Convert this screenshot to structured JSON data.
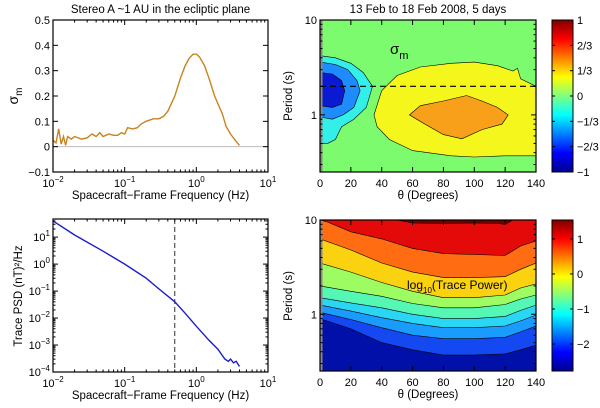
{
  "chart_data": [
    {
      "type": "line",
      "title": "Stereo A ~1 AU in the ecliptic plane",
      "xlabel": "Spacecraft−Frame Frequency (Hz)",
      "ylabel": "σ",
      "ylabel_sub": "m",
      "xscale": "log",
      "xlim": [
        0.01,
        10
      ],
      "ylim": [
        -0.1,
        0.5
      ],
      "xticks": [
        {
          "base": "10",
          "exp": "−2",
          "v": 0.01
        },
        {
          "base": "10",
          "exp": "−1",
          "v": 0.1
        },
        {
          "base": "10",
          "exp": "0",
          "v": 1
        },
        {
          "base": "10",
          "exp": "1",
          "v": 10
        }
      ],
      "yticks": [
        {
          "label": "0.5",
          "v": 0.5
        },
        {
          "label": "0.4",
          "v": 0.4
        },
        {
          "label": "0.3",
          "v": 0.3
        },
        {
          "label": "0.2",
          "v": 0.2
        },
        {
          "label": "0.1",
          "v": 0.1
        },
        {
          "label": "0",
          "v": 0
        },
        {
          "label": "−0.1",
          "v": -0.1
        }
      ],
      "zero_line": 0,
      "line_color": "#c8831e",
      "series": [
        {
          "x": [
            0.01,
            0.011,
            0.012,
            0.013,
            0.014,
            0.015,
            0.016,
            0.018,
            0.02,
            0.025,
            0.03,
            0.035,
            0.04,
            0.045,
            0.05,
            0.06,
            0.07,
            0.08,
            0.09,
            0.1,
            0.11,
            0.13,
            0.15,
            0.17,
            0.2,
            0.25,
            0.3,
            0.35,
            0.4,
            0.5,
            0.6,
            0.7,
            0.8,
            0.9,
            1.0,
            1.1,
            1.3,
            1.5,
            1.8,
            2.0,
            2.3,
            2.6,
            3.0,
            3.5,
            4.0
          ],
          "y": [
            0.025,
            0.015,
            0.07,
            0.01,
            0.04,
            0.005,
            0.04,
            0.03,
            0.04,
            0.03,
            0.035,
            0.05,
            0.04,
            0.055,
            0.04,
            0.05,
            0.045,
            0.045,
            0.055,
            0.05,
            0.075,
            0.07,
            0.075,
            0.09,
            0.1,
            0.11,
            0.11,
            0.12,
            0.14,
            0.2,
            0.27,
            0.32,
            0.35,
            0.365,
            0.365,
            0.355,
            0.32,
            0.27,
            0.2,
            0.17,
            0.13,
            0.08,
            0.05,
            0.025,
            0.005
          ]
        }
      ]
    },
    {
      "type": "line",
      "title": "",
      "xlabel": "Spacecraft−Frame Frequency (Hz)",
      "ylabel": "Trace PSD (nT)²/Hz",
      "xscale": "log",
      "yscale": "log",
      "xlim": [
        0.01,
        10
      ],
      "ylim": [
        0.0001,
        47
      ],
      "xticks": [
        {
          "base": "10",
          "exp": "−2",
          "v": 0.01
        },
        {
          "base": "10",
          "exp": "−1",
          "v": 0.1
        },
        {
          "base": "10",
          "exp": "0",
          "v": 1
        },
        {
          "base": "10",
          "exp": "1",
          "v": 10
        }
      ],
      "yticks": [
        {
          "base": "10",
          "exp": "1",
          "v": 10
        },
        {
          "base": "10",
          "exp": "0",
          "v": 1
        },
        {
          "base": "10",
          "exp": "−1",
          "v": 0.1
        },
        {
          "base": "10",
          "exp": "−2",
          "v": 0.01
        },
        {
          "base": "10",
          "exp": "−3",
          "v": 0.001
        },
        {
          "base": "10",
          "exp": "−4",
          "v": 0.0001
        }
      ],
      "vline": 0.5,
      "line_color": "#1c1ccc",
      "series": [
        {
          "x": [
            0.01,
            0.02,
            0.05,
            0.1,
            0.2,
            0.3,
            0.5,
            0.7,
            1,
            1.5,
            2,
            2.5,
            2.8,
            3.0,
            3.3,
            3.6,
            4.0
          ],
          "y": [
            40,
            12,
            3,
            1,
            0.3,
            0.12,
            0.04,
            0.015,
            0.005,
            0.0015,
            0.0007,
            0.0003,
            0.00025,
            0.0003,
            0.00022,
            0.00025,
            0.00016
          ]
        }
      ]
    },
    {
      "type": "heatmap",
      "title": "13 Feb to 18 Feb 2008, 5 days",
      "annotation": "σ",
      "annotation_sub": "m",
      "xlabel": "θ (Degrees)",
      "ylabel": "Period (s)",
      "xlim": [
        0,
        140
      ],
      "ylim": [
        0.25,
        10
      ],
      "yscale": "log",
      "xticks": [
        "0",
        "20",
        "40",
        "60",
        "80",
        "100",
        "120",
        "140"
      ],
      "yticks": [
        {
          "label": "10",
          "v": 10
        },
        {
          "label": "1",
          "v": 1
        }
      ],
      "hline": 2,
      "background_color": "#7dfb6e",
      "colorbar": {
        "range": [
          -1,
          1
        ],
        "ticks": [
          {
            "label": "1",
            "v": 1
          },
          {
            "label": "2/3",
            "v": 0.6667
          },
          {
            "label": "1/3",
            "v": 0.3333
          },
          {
            "label": "0",
            "v": 0
          },
          {
            "label": "−1/3",
            "v": -0.3333
          },
          {
            "label": "−2/3",
            "v": -0.6667
          },
          {
            "label": "−1",
            "v": -1
          }
        ]
      },
      "regions": [
        {
          "level": "-1/3",
          "color": "#32f0e8",
          "points": [
            [
              0,
              4.2
            ],
            [
              10,
              4.0
            ],
            [
              20,
              3.5
            ],
            [
              28,
              2.8
            ],
            [
              34,
              2
            ],
            [
              30,
              1.2
            ],
            [
              22,
              0.9
            ],
            [
              14,
              0.75
            ],
            [
              10,
              0.55
            ],
            [
              5,
              0.5
            ],
            [
              0,
              0.5
            ]
          ]
        },
        {
          "level": "-2/3",
          "color": "#1e8cff",
          "points": [
            [
              0,
              3.6
            ],
            [
              10,
              3.4
            ],
            [
              18,
              3
            ],
            [
              24,
              2.3
            ],
            [
              26,
              1.8
            ],
            [
              22,
              1.2
            ],
            [
              15,
              1.0
            ],
            [
              8,
              0.9
            ],
            [
              0,
              0.95
            ]
          ]
        },
        {
          "level": "-1",
          "color": "#0a1ad2",
          "points": [
            [
              0,
              2.8
            ],
            [
              8,
              2.7
            ],
            [
              14,
              2.3
            ],
            [
              16,
              1.8
            ],
            [
              14,
              1.3
            ],
            [
              8,
              1.2
            ],
            [
              0,
              1.25
            ]
          ]
        },
        {
          "level": "1/3",
          "color": "#f4f61c",
          "points": [
            [
              35,
              1.0
            ],
            [
              40,
              1.8
            ],
            [
              50,
              2.6
            ],
            [
              65,
              3.2
            ],
            [
              85,
              3.5
            ],
            [
              100,
              3.6
            ],
            [
              115,
              3.3
            ],
            [
              125,
              2.9
            ],
            [
              128,
              3.1
            ],
            [
              130,
              2.4
            ],
            [
              140,
              2.0
            ],
            [
              140,
              0.37
            ],
            [
              120,
              0.37
            ],
            [
              100,
              0.36
            ],
            [
              85,
              0.37
            ],
            [
              60,
              0.42
            ],
            [
              45,
              0.55
            ],
            [
              37,
              0.75
            ]
          ]
        },
        {
          "level": "2/3",
          "color": "#f8a01a",
          "points": [
            [
              58,
              1.0
            ],
            [
              65,
              1.25
            ],
            [
              80,
              1.4
            ],
            [
              95,
              1.6
            ],
            [
              105,
              1.4
            ],
            [
              115,
              1.2
            ],
            [
              122,
              1.0
            ],
            [
              118,
              0.8
            ],
            [
              105,
              0.7
            ],
            [
              92,
              0.56
            ],
            [
              80,
              0.62
            ],
            [
              68,
              0.8
            ]
          ]
        }
      ]
    },
    {
      "type": "heatmap",
      "title": "",
      "annotation": "log",
      "annotation_sub": "10",
      "annotation_tail": "(Trace Power)",
      "xlabel": "θ (Degrees)",
      "ylabel": "Period (s)",
      "xlim": [
        0,
        140
      ],
      "ylim": [
        0.25,
        10
      ],
      "yscale": "log",
      "xticks": [
        "0",
        "20",
        "40",
        "60",
        "80",
        "100",
        "120",
        "140"
      ],
      "yticks": [
        {
          "label": "10",
          "v": 10
        },
        {
          "label": "1",
          "v": 1
        }
      ],
      "background_color": "#0010a8",
      "colorbar": {
        "range": [
          -2.77,
          1.54
        ],
        "ticks": [
          {
            "label": "1",
            "v": 1
          },
          {
            "label": "0",
            "v": 0
          },
          {
            "label": "−1",
            "v": -1
          },
          {
            "label": "−2",
            "v": -2
          }
        ]
      },
      "bands": [
        {
          "color": "#1448f0",
          "boundary": [
            [
              0,
              0.9
            ],
            [
              20,
              0.7
            ],
            [
              40,
              0.5
            ],
            [
              60,
              0.42
            ],
            [
              80,
              0.37
            ],
            [
              100,
              0.37
            ],
            [
              120,
              0.38
            ],
            [
              130,
              0.42
            ],
            [
              140,
              0.47
            ]
          ]
        },
        {
          "color": "#1a9cff",
          "boundary": [
            [
              0,
              1.05
            ],
            [
              20,
              0.88
            ],
            [
              40,
              0.72
            ],
            [
              60,
              0.6
            ],
            [
              80,
              0.55
            ],
            [
              100,
              0.55
            ],
            [
              120,
              0.57
            ],
            [
              130,
              0.65
            ],
            [
              140,
              0.75
            ]
          ]
        },
        {
          "color": "#2ad6f4",
          "boundary": [
            [
              0,
              1.25
            ],
            [
              20,
              1.08
            ],
            [
              40,
              0.92
            ],
            [
              60,
              0.8
            ],
            [
              80,
              0.72
            ],
            [
              100,
              0.72
            ],
            [
              120,
              0.75
            ],
            [
              130,
              0.85
            ],
            [
              140,
              0.98
            ]
          ]
        },
        {
          "color": "#54f7b4",
          "boundary": [
            [
              0,
              1.5
            ],
            [
              20,
              1.32
            ],
            [
              40,
              1.17
            ],
            [
              60,
              1.0
            ],
            [
              80,
              0.9
            ],
            [
              100,
              0.9
            ],
            [
              120,
              0.95
            ],
            [
              130,
              1.1
            ],
            [
              140,
              1.25
            ]
          ]
        },
        {
          "color": "#9cfc62",
          "boundary": [
            [
              0,
              2.0
            ],
            [
              20,
              1.75
            ],
            [
              40,
              1.55
            ],
            [
              60,
              1.3
            ],
            [
              80,
              1.17
            ],
            [
              100,
              1.17
            ],
            [
              120,
              1.27
            ],
            [
              130,
              1.45
            ],
            [
              140,
              1.6
            ]
          ]
        },
        {
          "color": "#fbd210",
          "boundary": [
            [
              0,
              3.5
            ],
            [
              20,
              2.8
            ],
            [
              40,
              2.17
            ],
            [
              60,
              1.75
            ],
            [
              80,
              1.5
            ],
            [
              100,
              1.5
            ],
            [
              120,
              1.6
            ],
            [
              130,
              1.9
            ],
            [
              140,
              2.1
            ]
          ]
        },
        {
          "color": "#ff6c12",
          "boundary": [
            [
              0,
              6.3
            ],
            [
              20,
              4.8
            ],
            [
              40,
              3.5
            ],
            [
              60,
              2.8
            ],
            [
              80,
              2.45
            ],
            [
              100,
              2.45
            ],
            [
              120,
              2.5
            ],
            [
              130,
              3.0
            ],
            [
              140,
              3.5
            ]
          ]
        },
        {
          "color": "#e40a0a",
          "boundary": [
            [
              0,
              10
            ],
            [
              5,
              9.5
            ],
            [
              20,
              7.5
            ],
            [
              40,
              6.3
            ],
            [
              60,
              5.0
            ],
            [
              80,
              4.4
            ],
            [
              100,
              4.3
            ],
            [
              120,
              4.2
            ],
            [
              130,
              5.3
            ],
            [
              140,
              6.0
            ]
          ]
        },
        {
          "color": "#760000",
          "boundary": [
            [
              0,
              10
            ],
            [
              50,
              10
            ],
            [
              60,
              9.3
            ],
            [
              80,
              9.2
            ],
            [
              100,
              9.3
            ],
            [
              115,
              9.2
            ],
            [
              120,
              9.0
            ],
            [
              125,
              10
            ],
            [
              140,
              10
            ]
          ]
        }
      ]
    }
  ]
}
